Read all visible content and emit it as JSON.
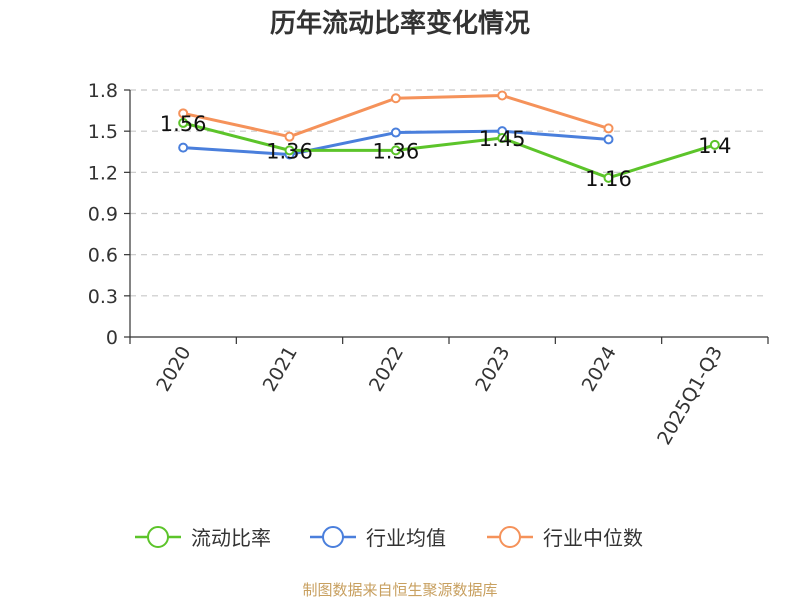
{
  "chart_data": {
    "type": "line",
    "title": "历年流动比率变化情况",
    "categories": [
      "2020",
      "2021",
      "2022",
      "2023",
      "2024",
      "2025Q1-Q3"
    ],
    "ylim": [
      0,
      1.8
    ],
    "yticks": [
      "0",
      "0.3",
      "0.6",
      "0.9",
      "1.2",
      "1.5",
      "1.8"
    ],
    "grid": true,
    "legend_position": "bottom",
    "series": [
      {
        "name": "流动比率",
        "color": "#5cc42a",
        "values": [
          1.56,
          1.36,
          1.36,
          1.45,
          1.16,
          1.4
        ],
        "labels": [
          "1.56",
          "1.36",
          "1.36",
          "1.45",
          "1.16",
          "1.4"
        ]
      },
      {
        "name": "行业均值",
        "color": "#4a7fdc",
        "values": [
          1.38,
          1.33,
          1.49,
          1.5,
          1.44,
          null
        ]
      },
      {
        "name": "行业中位数",
        "color": "#f5925a",
        "values": [
          1.63,
          1.46,
          1.74,
          1.76,
          1.52,
          null
        ]
      }
    ]
  },
  "source": "制图数据来自恒生聚源数据库"
}
